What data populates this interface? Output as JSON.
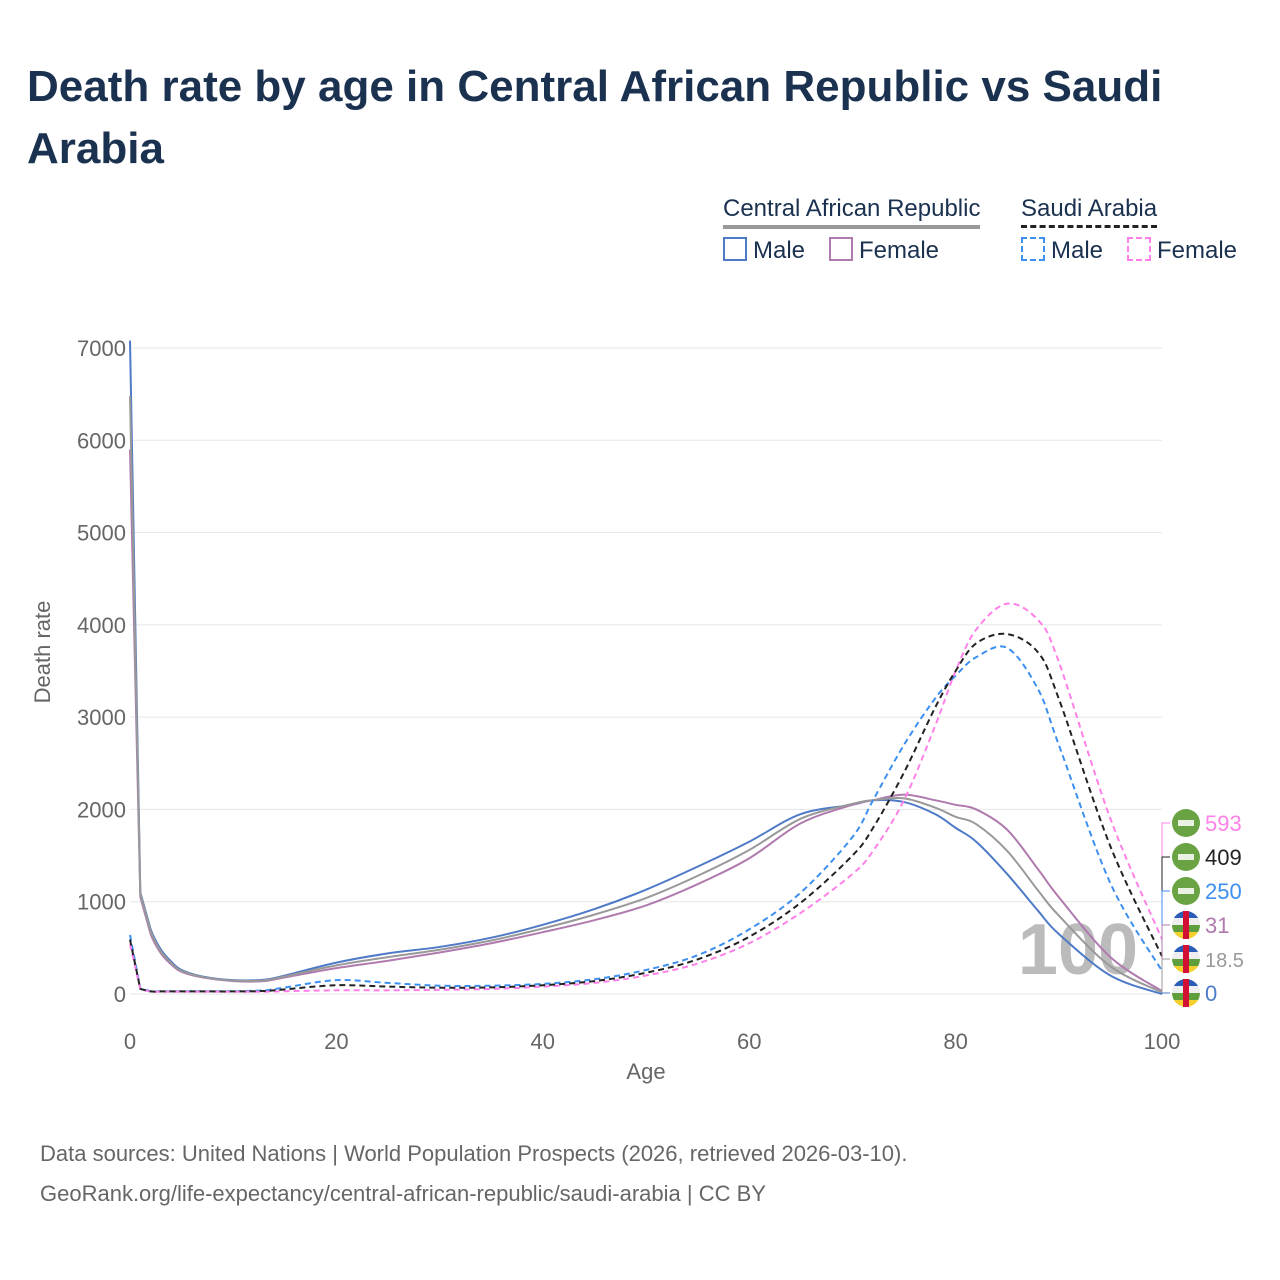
{
  "title": "Death rate by age in Central African Republic vs Saudi Arabia",
  "legend": {
    "groups": [
      {
        "name": "Central African Republic",
        "male": "Male",
        "female": "Female"
      },
      {
        "name": "Saudi Arabia",
        "male": "Male",
        "female": "Female"
      }
    ]
  },
  "source_line1": "Data sources: United Nations | World Population Prospects (2026, retrieved 2026-03-10).",
  "source_line2": "GeoRank.org/life-expectancy/central-african-republic/saudi-arabia | CC BY",
  "chart_data": {
    "type": "line",
    "xlabel": "Age",
    "ylabel": "Death rate",
    "xlim": [
      0,
      100
    ],
    "ylim": [
      0,
      7000
    ],
    "xticks": [
      0,
      20,
      40,
      60,
      80,
      100
    ],
    "yticks": [
      0,
      1000,
      2000,
      3000,
      4000,
      5000,
      6000,
      7000
    ],
    "watermark": "100",
    "x": [
      0,
      1,
      2,
      3,
      4,
      5,
      7,
      10,
      13,
      15,
      20,
      25,
      30,
      35,
      40,
      45,
      50,
      55,
      60,
      65,
      70,
      72,
      75,
      78,
      80,
      82,
      85,
      88,
      90,
      95,
      100
    ],
    "series": [
      {
        "name": "Central African Republic Male",
        "color": "#4e7ac7",
        "dash": false,
        "end_label": "0",
        "flag": "car",
        "values": [
          7080,
          1100,
          700,
          480,
          350,
          260,
          190,
          150,
          155,
          200,
          340,
          440,
          510,
          610,
          750,
          920,
          1130,
          1380,
          1650,
          1950,
          2050,
          2100,
          2080,
          1950,
          1800,
          1650,
          1300,
          900,
          650,
          200,
          0
        ]
      },
      {
        "name": "Central African Republic Female",
        "color": "#b07aaf",
        "dash": false,
        "end_label": "31",
        "flag": "car",
        "values": [
          5900,
          1050,
          650,
          440,
          320,
          240,
          180,
          140,
          140,
          180,
          280,
          360,
          450,
          550,
          670,
          800,
          960,
          1190,
          1470,
          1850,
          2050,
          2100,
          2160,
          2100,
          2050,
          2000,
          1780,
          1350,
          1050,
          400,
          31
        ]
      },
      {
        "name": "Central African Republic Total",
        "color": "#999999",
        "dash": false,
        "end_label": "18.5",
        "flag": "car",
        "values": [
          6480,
          1080,
          680,
          460,
          335,
          250,
          185,
          145,
          148,
          190,
          310,
          400,
          480,
          580,
          710,
          860,
          1040,
          1280,
          1560,
          1900,
          2060,
          2100,
          2120,
          2020,
          1920,
          1840,
          1550,
          1120,
          850,
          300,
          18.5
        ]
      },
      {
        "name": "Saudi Arabia Male",
        "color": "#3d8ff0",
        "dash": true,
        "end_label": "250",
        "flag": "sa",
        "values": [
          640,
          60,
          30,
          30,
          30,
          30,
          30,
          30,
          40,
          70,
          150,
          120,
          90,
          90,
          110,
          160,
          260,
          420,
          700,
          1100,
          1700,
          2100,
          2700,
          3200,
          3450,
          3650,
          3750,
          3300,
          2700,
          1200,
          250
        ]
      },
      {
        "name": "Saudi Arabia Female",
        "color": "#ff80e8",
        "dash": true,
        "end_label": "593",
        "flag": "sa",
        "values": [
          540,
          50,
          25,
          25,
          25,
          25,
          25,
          25,
          25,
          30,
          40,
          40,
          45,
          55,
          80,
          120,
          200,
          330,
          550,
          880,
          1300,
          1550,
          2100,
          2900,
          3500,
          3950,
          4230,
          4050,
          3600,
          1900,
          593
        ]
      },
      {
        "name": "Saudi Arabia Total",
        "color": "#222222",
        "dash": true,
        "end_label": "409",
        "flag": "sa",
        "values": [
          590,
          55,
          28,
          28,
          28,
          28,
          28,
          28,
          32,
          50,
          95,
          80,
          68,
          72,
          95,
          140,
          230,
          375,
          620,
          990,
          1500,
          1800,
          2400,
          3100,
          3500,
          3800,
          3900,
          3700,
          3200,
          1600,
          409
        ]
      }
    ]
  }
}
